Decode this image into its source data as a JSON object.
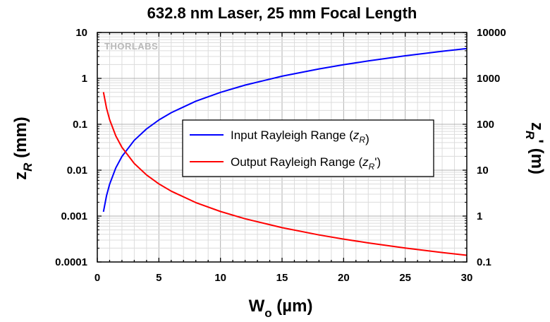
{
  "chart_data": {
    "type": "line",
    "title": "632.8 nm Laser, 25 mm Focal Length",
    "xlabel": {
      "main": "W",
      "sub": "o",
      "rest": " (µm)"
    },
    "ylabel_left": {
      "main": "z",
      "sub": "R",
      "rest": " (mm)"
    },
    "ylabel_right": {
      "main": "z",
      "sub": "R",
      "prime": "'",
      "rest": " (m)"
    },
    "xlim": [
      0,
      30
    ],
    "ylim_left": [
      0.0001,
      10
    ],
    "ylim_right": [
      0.1,
      10000
    ],
    "yscale": "log",
    "grid": true,
    "legend_position": "center-right",
    "x_ticks": [
      "0",
      "5",
      "10",
      "15",
      "20",
      "25",
      "30"
    ],
    "y_ticks_left": [
      "10",
      "1",
      "0.1",
      "0.01",
      "0.001",
      "0.0001"
    ],
    "y_ticks_right": [
      "10000",
      "1000",
      "100",
      "10",
      "1",
      "0.1"
    ],
    "watermark": "THORLABS",
    "series": [
      {
        "name": "Input Rayleigh Range (zR)",
        "legend": {
          "prefix": "Input Rayleigh Range (",
          "var": "z",
          "sub": "R",
          "prime": "",
          "suffix": ")"
        },
        "axis": "left",
        "color": "#0000ff",
        "x": [
          0.5,
          0.75,
          1,
          1.5,
          2,
          3,
          4,
          5,
          6,
          8,
          10,
          12,
          15,
          18,
          20,
          22,
          25,
          28,
          30
        ],
        "y": [
          0.00124,
          0.00279,
          0.00496,
          0.0112,
          0.0199,
          0.0447,
          0.0794,
          0.124,
          0.179,
          0.318,
          0.496,
          0.715,
          1.117,
          1.608,
          1.986,
          2.403,
          3.103,
          3.892,
          4.468
        ]
      },
      {
        "name": "Output Rayleigh Range (zR')",
        "legend": {
          "prefix": "Output Rayleigh Range (",
          "var": "z",
          "sub": "R",
          "prime": "'",
          "suffix": ")"
        },
        "axis": "right",
        "color": "#ff0000",
        "x": [
          0.5,
          0.75,
          1,
          1.5,
          2,
          3,
          4,
          5,
          6,
          8,
          10,
          12,
          15,
          18,
          20,
          22,
          25,
          28,
          30
        ],
        "y": [
          503.6,
          223.8,
          125.9,
          55.96,
          31.48,
          13.99,
          7.87,
          5.036,
          3.497,
          1.967,
          1.259,
          0.874,
          0.5596,
          0.3886,
          0.3148,
          0.2601,
          0.2014,
          0.1606,
          0.1399
        ]
      }
    ]
  }
}
